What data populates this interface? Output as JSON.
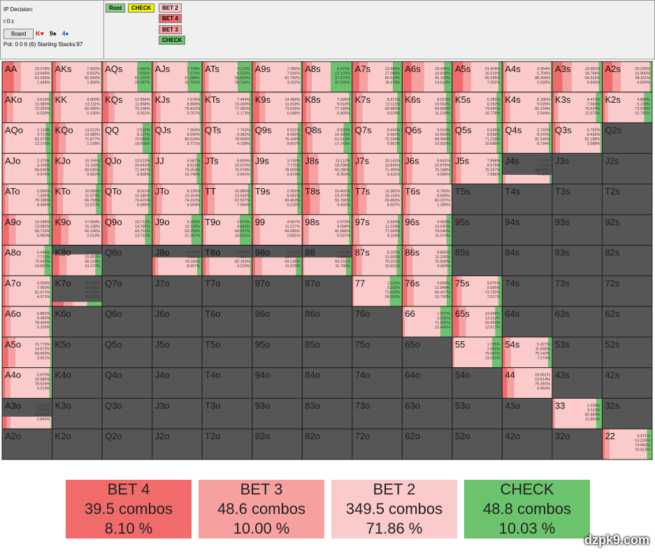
{
  "header": {
    "decision": "IP Decision:",
    "node": "r:0:c",
    "board_button": "Board",
    "board": [
      {
        "card": "K♥",
        "color": "#d01010"
      },
      {
        "card": "9♠",
        "color": "#111111"
      },
      {
        "card": "4♦",
        "color": "#2050c0"
      }
    ],
    "pot": "Pot: 0 0 6 (6) Starting Stacks:97"
  },
  "tree": [
    {
      "label": "Root",
      "color": "#7ed07e"
    },
    {
      "label": "CHECK",
      "color": "#f4f400"
    },
    {
      "label": "BET 2",
      "color": "#fbc8c8"
    },
    {
      "label": "BET 4",
      "color": "#f26b6b"
    },
    {
      "label": "BET 3",
      "color": "#f7a0a0"
    },
    {
      "label": "CHECK",
      "color": "#6cc36e"
    }
  ],
  "summary": [
    {
      "name": "BET 4",
      "combos": "39.5 combos",
      "percent": "8.10 %",
      "color": "#f26b6b"
    },
    {
      "name": "BET 3",
      "combos": "48.6 combos",
      "percent": "10.00 %",
      "color": "#f7a0a0"
    },
    {
      "name": "BET 2",
      "combos": "349.5 combos",
      "percent": "71.86 %",
      "color": "#fbcaca"
    },
    {
      "name": "CHECK",
      "combos": "48.8 combos",
      "percent": "10.03 %",
      "color": "#6cc36e"
    }
  ],
  "grid": [
    [
      {
        "hand": "AA",
        "freqs": [
          "23.278%",
          "13.648%",
          "61.636%",
          "1.438%"
        ]
      },
      {
        "hand": "AKs",
        "freqs": [
          "7.650%",
          "8.602%",
          "81.942%",
          "1.806%"
        ]
      },
      {
        "hand": "AQs",
        "freqs": [
          "2.482%",
          "7.058%",
          "61.102%",
          "29.347%"
        ]
      },
      {
        "hand": "AJs",
        "freqs": [
          "2.738%",
          "7.072%",
          "61.488%",
          "32.704%"
        ]
      },
      {
        "hand": "ATs",
        "freqs": [
          "6.110%",
          "6.520%",
          "58.625%",
          "28.744%"
        ]
      },
      {
        "hand": "A9s",
        "freqs": [
          "7.289%",
          "7.816%",
          "81.792%",
          "3.102%"
        ]
      },
      {
        "hand": "A8s",
        "freqs": [
          "8.975%",
          "10.129%",
          "37.970%",
          "42.926%"
        ]
      },
      {
        "hand": "A7s",
        "freqs": [
          "13.908%",
          "17.088%",
          "50.523%",
          "18.478%"
        ]
      },
      {
        "hand": "A6s",
        "freqs": [
          "18.405%",
          "24.828%",
          "41.153%",
          "14.614%"
        ]
      },
      {
        "hand": "A5s",
        "freqs": [
          "21.424%",
          "16.019%",
          "55.295%",
          "7.262%"
        ]
      },
      {
        "hand": "A4s",
        "freqs": [
          "3.354%",
          "5.709%",
          "88.309%",
          "2.628%"
        ]
      },
      {
        "hand": "A3s",
        "freqs": [
          "19.981%",
          "18.764%",
          "54.312%",
          "6.943%"
        ]
      },
      {
        "hand": "A2s",
        "freqs": [
          "20.225%",
          "16.905%",
          "58.311%",
          "4.559%"
        ]
      }
    ],
    [
      {
        "hand": "AKo",
        "freqs": [
          "9.619%",
          "11.985%",
          "72.250%",
          "6.528%"
        ]
      },
      {
        "hand": "KK",
        "freqs": [
          "4.909%",
          "12.111%",
          "82.845%",
          "0.135%"
        ]
      },
      {
        "hand": "KQs",
        "freqs": [
          "12.584%",
          "11.858%",
          "75.208%",
          "0.351%"
        ]
      },
      {
        "hand": "KJs",
        "freqs": [
          "7.676%",
          "8.808%",
          "78.810%",
          "3.707%"
        ]
      },
      {
        "hand": "KTs",
        "freqs": [
          "7.444%",
          "10.300%",
          "77.083%",
          "5.173%"
        ]
      },
      {
        "hand": "K9s",
        "freqs": [
          "14.458%",
          "11.818%",
          "73.536%",
          "0.188%"
        ]
      },
      {
        "hand": "K8s",
        "freqs": [
          "7.296%",
          "9.618%",
          "77.180%",
          "5.905%"
        ]
      },
      {
        "hand": "K7s",
        "freqs": [
          "8.371%",
          "12.111%",
          "69.989%",
          "9.529%"
        ]
      },
      {
        "hand": "K6s",
        "freqs": [
          "8.013%",
          "10.562%",
          "69.898%",
          "11.528%"
        ]
      },
      {
        "hand": "K5s",
        "freqs": [
          "6.282%",
          "8.292%",
          "74.645%",
          "10.778%"
        ]
      },
      {
        "hand": "K4s",
        "freqs": [
          "6.186%",
          "9.025%",
          "82.234%",
          "2.544%"
        ]
      },
      {
        "hand": "K3s",
        "freqs": [
          "4.471%",
          "7.083%",
          "75.924%",
          "12.570%"
        ]
      },
      {
        "hand": "K2s",
        "freqs": [
          "4.884%",
          "6.230%",
          "73.095%",
          "15.791%"
        ]
      }
    ],
    [
      {
        "hand": "AQo",
        "freqs": [
          "2.133%",
          "3.717%",
          "81.975%",
          "12.175%"
        ]
      },
      {
        "hand": "KQo",
        "freqs": [
          "13.012%",
          "13.985%",
          "71.877%",
          "1.128%"
        ]
      },
      {
        "hand": "QQ",
        "freqs": [
          "2.524%",
          "8.127%",
          "70.683%",
          "18.666%"
        ]
      },
      {
        "hand": "QJs",
        "freqs": [
          "7.363%",
          "8.342%",
          "80.524%",
          "3.771%"
        ]
      },
      {
        "hand": "QTs",
        "freqs": [
          "7.753%",
          "9.382%",
          "78.668%",
          "4.198%"
        ]
      },
      {
        "hand": "Q9s",
        "freqs": [
          "6.521%",
          "8.433%",
          "76.438%",
          "8.607%"
        ]
      },
      {
        "hand": "Q8s",
        "freqs": [
          "9.820%",
          "10.425%",
          "62.613%",
          "17.143%"
        ]
      },
      {
        "hand": "Q7s",
        "freqs": [
          "8.443%",
          "9.392%",
          "72.234%",
          "9.962%"
        ]
      },
      {
        "hand": "Q6s",
        "freqs": [
          "9.524%",
          "10.660%",
          "68.984%",
          "10.832%"
        ]
      },
      {
        "hand": "Q5s",
        "freqs": [
          "8.536%",
          "9.558%",
          "71.218%",
          "10.688%"
        ]
      },
      {
        "hand": "Q4s",
        "freqs": [
          "2.743%",
          "8.976%",
          "81.546%",
          "6.734%"
        ]
      },
      {
        "hand": "Q3s",
        "freqs": [
          "6.792%",
          "8.432%",
          "81.188%",
          "3.588%"
        ]
      },
      {
        "hand": "Q2s"
      }
    ],
    [
      {
        "hand": "AJo",
        "freqs": [
          "2.375%",
          "3.105%",
          "84.546%",
          "9.974%"
        ]
      },
      {
        "hand": "KJo",
        "freqs": [
          "10.765%",
          "11.118%",
          "69.035%",
          "9.062%"
        ]
      },
      {
        "hand": "QJo",
        "freqs": [
          "10.510%",
          "10.643%",
          "71.942%",
          "6.905%"
        ]
      },
      {
        "hand": "JJ",
        "freqs": [
          "5.587%",
          "8.612%",
          "75.254%",
          "10.748%"
        ]
      },
      {
        "hand": "JTs",
        "freqs": [
          "8.809%",
          "10.570%",
          "76.978%",
          "3.642%"
        ]
      },
      {
        "hand": "J9s",
        "freqs": [
          "3.743%",
          "7.775%",
          "78.509%",
          "9.973%"
        ]
      },
      {
        "hand": "J8s",
        "freqs": [
          "13.113%",
          "18.238%",
          "60.286%",
          "8.363%"
        ]
      },
      {
        "hand": "J7s",
        "freqs": [
          "10.141%",
          "12.842%",
          "71.405%",
          "5.611%"
        ]
      },
      {
        "hand": "J6s",
        "freqs": [
          "8.841%",
          "10.875%",
          "75.348%",
          "4.936%"
        ]
      },
      {
        "hand": "J5s",
        "freqs": [
          "7.958%",
          "9.279%",
          "75.167%",
          "7.586%"
        ]
      },
      {
        "hand": "J4s",
        "freqs": [
          "1.757%",
          "4.232%",
          "88.602%",
          "4.410%"
        ],
        "weight": 0.3
      },
      {
        "hand": "J3s"
      },
      {
        "hand": "J2s"
      }
    ],
    [
      {
        "hand": "ATo",
        "freqs": [
          "5.056%",
          "7.305%",
          "79.188%",
          "8.449%"
        ]
      },
      {
        "hand": "KTo",
        "freqs": [
          "10.090%",
          "11.079%",
          "66.758%",
          "12.072%"
        ]
      },
      {
        "hand": "QTo",
        "freqs": [
          "8.611%",
          "10.380%",
          "73.420%",
          "6.589%"
        ]
      },
      {
        "hand": "JTo",
        "freqs": [
          "9.126%",
          "10.154%",
          "74.210%",
          "6.504%"
        ]
      },
      {
        "hand": "TT",
        "freqs": [
          "10.886%",
          "13.632%",
          "67.507%",
          "7.964%"
        ]
      },
      {
        "hand": "T9s",
        "freqs": [
          "2.302%",
          "5.081%",
          "83.403%",
          "9.215%"
        ]
      },
      {
        "hand": "T8s",
        "freqs": [
          "15.402%",
          "19.379%",
          "55.765%",
          "9.455%"
        ]
      },
      {
        "hand": "T7s",
        "freqs": [
          "12.381%",
          "16.133%",
          "69.450%",
          "6.037%"
        ]
      },
      {
        "hand": "T6s",
        "freqs": [
          "6.755%",
          "8.609%",
          "83.237%",
          "1.399%"
        ]
      },
      {
        "hand": "T5s"
      },
      {
        "hand": "T4s"
      },
      {
        "hand": "T3s"
      },
      {
        "hand": "T2s"
      }
    ],
    [
      {
        "hand": "A9o",
        "freqs": [
          "13.348%",
          "13.982%",
          "66.710%",
          "5.960%"
        ]
      },
      {
        "hand": "K9o",
        "freqs": [
          "17.654%",
          "15.138%",
          "66.145%",
          "0.213%"
        ]
      },
      {
        "hand": "Q9o",
        "freqs": [
          "10.712%",
          "14.785%",
          "60.791%",
          "13.731%"
        ]
      },
      {
        "hand": "J9o",
        "freqs": [
          "5.296%",
          "10.139%",
          "63.259%",
          "21.307%"
        ]
      },
      {
        "hand": "T9o",
        "freqs": [
          "2.679%",
          "4.643%",
          "68.027%",
          "24.651%"
        ]
      },
      {
        "hand": "99",
        "freqs": [
          "4.007%",
          "11.217%",
          "84.585%",
          "0.081%"
        ]
      },
      {
        "hand": "98s",
        "freqs": [
          "2.979%",
          "9.598%",
          "81.686%",
          "5.537%"
        ]
      },
      {
        "hand": "97s",
        "freqs": [
          "3.320%",
          "11.018%",
          "77.343%",
          "8.118%"
        ]
      },
      {
        "hand": "96s",
        "freqs": [
          "3.453%",
          "10.930%",
          "74.540%",
          "11.074%"
        ]
      },
      {
        "hand": "95s"
      },
      {
        "hand": "94s"
      },
      {
        "hand": "93s"
      },
      {
        "hand": "92s"
      }
    ],
    [
      {
        "hand": "A8o",
        "freqs": [
          "6.640%",
          "7.712%",
          "70.691%",
          "14.957%"
        ]
      },
      {
        "hand": "K8o",
        "freqs": [
          "13.602%",
          "15.063%",
          "58.159%",
          "13.172%"
        ],
        "weight": 0.7
      },
      {
        "hand": "Q8o"
      },
      {
        "hand": "J8o",
        "freqs": [
          "6.087%",
          "5.811%",
          "78.165%",
          "8.657%"
        ],
        "weight": 0.6
      },
      {
        "hand": "T8o",
        "freqs": [
          "6.668%",
          "7.332%",
          "82.193%",
          "4.210%"
        ],
        "weight": 0.6
      },
      {
        "hand": "98o",
        "freqs": [
          "5.711%",
          "13.171%",
          "69.138%",
          "11.979%"
        ],
        "weight": 0.6
      },
      {
        "hand": "88",
        "freqs": [
          "1.612%",
          "2.388%",
          "84.201%",
          "11.798%"
        ],
        "weight": 0.6
      },
      {
        "hand": "87s",
        "freqs": [
          "8.100%",
          "11.000%",
          "70.231%",
          "10.631%"
        ]
      },
      {
        "hand": "86s",
        "freqs": [
          "8.865%",
          "11.230%",
          "70.838%",
          "9.063%"
        ]
      },
      {
        "hand": "85s"
      },
      {
        "hand": "84s"
      },
      {
        "hand": "83s"
      },
      {
        "hand": "82s"
      }
    ],
    [
      {
        "hand": "A7o",
        "freqs": [
          "6.008%",
          "7.950%",
          "81.671%",
          "4.371%"
        ]
      },
      {
        "hand": "K7o",
        "freqs": [
          "23.004%",
          "18.095%",
          "28.795%",
          "29.355%"
        ],
        "weight": 0.15
      },
      {
        "hand": "Q7o"
      },
      {
        "hand": "J7o"
      },
      {
        "hand": "T7o"
      },
      {
        "hand": "97o"
      },
      {
        "hand": "87o"
      },
      {
        "hand": "77",
        "freqs": [
          "1.526%",
          "2.292%",
          "71.820%",
          "24.352%"
        ]
      },
      {
        "hand": "76s",
        "freqs": [
          "9.894%",
          "12.848%",
          "66.467%",
          "10.793%"
        ]
      },
      {
        "hand": "75s",
        "freqs": [
          "9.075%",
          "9.589%",
          "73.720%",
          "7.617%"
        ]
      },
      {
        "hand": "74s"
      },
      {
        "hand": "73s"
      },
      {
        "hand": "72s"
      }
    ],
    [
      {
        "hand": "A6o",
        "freqs": [
          "6.882%",
          "9.480%",
          "78.424%",
          "5.203%"
        ]
      },
      {
        "hand": "K6o"
      },
      {
        "hand": "Q6o"
      },
      {
        "hand": "J6o"
      },
      {
        "hand": "T6o"
      },
      {
        "hand": "96o"
      },
      {
        "hand": "86o"
      },
      {
        "hand": "76o"
      },
      {
        "hand": "66",
        "freqs": [
          "1.927%",
          "3.536%",
          "71.091%",
          "23.445%"
        ]
      },
      {
        "hand": "65s",
        "freqs": [
          "13.066%",
          "14.113%",
          "59.300%",
          "12.517%"
        ]
      },
      {
        "hand": "64s"
      },
      {
        "hand": "63s"
      },
      {
        "hand": "62s"
      }
    ],
    [
      {
        "hand": "A5o",
        "freqs": [
          "11.773%",
          "14.672%",
          "69.903%",
          "3.651%"
        ]
      },
      {
        "hand": "K5o"
      },
      {
        "hand": "Q5o"
      },
      {
        "hand": "J5o"
      },
      {
        "hand": "T5o"
      },
      {
        "hand": "95o"
      },
      {
        "hand": "85o"
      },
      {
        "hand": "75o"
      },
      {
        "hand": "65o"
      },
      {
        "hand": "55",
        "freqs": [
          "1.735%",
          "2.560%",
          "75.587%",
          "19.511%"
        ]
      },
      {
        "hand": "54s",
        "freqs": [
          "5.227%",
          "11.558%",
          "75.142%",
          "7.674%"
        ]
      },
      {
        "hand": "53s"
      },
      {
        "hand": "52s"
      }
    ],
    [
      {
        "hand": "A4o",
        "freqs": [
          "5.675%",
          "10.586%",
          "78.526%",
          "5.213%"
        ]
      },
      {
        "hand": "K4o"
      },
      {
        "hand": "Q4o"
      },
      {
        "hand": "J4o"
      },
      {
        "hand": "T4o"
      },
      {
        "hand": "94o"
      },
      {
        "hand": "84o"
      },
      {
        "hand": "74o"
      },
      {
        "hand": "64o"
      },
      {
        "hand": "54o"
      },
      {
        "hand": "44",
        "freqs": [
          "10.061%",
          "13.614%",
          "76.261%",
          "0.063%"
        ]
      },
      {
        "hand": "43s"
      },
      {
        "hand": "42s"
      }
    ],
    [
      {
        "hand": "A3o",
        "freqs": [
          "9.123%",
          "7.590%",
          "80.445%",
          "2.842%"
        ],
        "weight": 0.4
      },
      {
        "hand": "K3o"
      },
      {
        "hand": "Q3o"
      },
      {
        "hand": "J3o"
      },
      {
        "hand": "T3o"
      },
      {
        "hand": "93o"
      },
      {
        "hand": "83o"
      },
      {
        "hand": "73o"
      },
      {
        "hand": "63o"
      },
      {
        "hand": "53o"
      },
      {
        "hand": "43o"
      },
      {
        "hand": "33",
        "freqs": [
          "2.328%",
          "3.110%",
          "82.889%",
          "11.893%"
        ]
      },
      {
        "hand": "32s"
      }
    ],
    [
      {
        "hand": "A2o"
      },
      {
        "hand": "K2o"
      },
      {
        "hand": "Q2o"
      },
      {
        "hand": "J2o"
      },
      {
        "hand": "T2o"
      },
      {
        "hand": "92o"
      },
      {
        "hand": "82o"
      },
      {
        "hand": "72o"
      },
      {
        "hand": "62o"
      },
      {
        "hand": "52o"
      },
      {
        "hand": "42o"
      },
      {
        "hand": "32o"
      },
      {
        "hand": "22",
        "freqs": [
          "4.371%",
          "10.224%",
          "74.963%",
          "10.413%"
        ]
      }
    ]
  ],
  "watermark": "dzpk9.com"
}
